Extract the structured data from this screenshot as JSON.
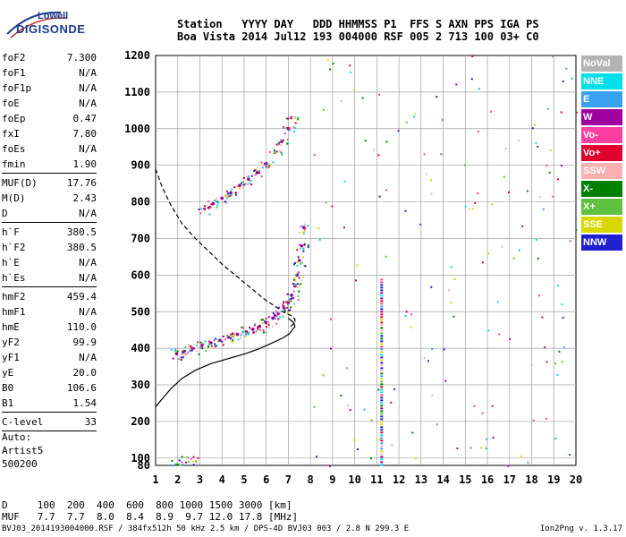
{
  "logo": {
    "line1": "Lowell",
    "line2": "DIGISONDE"
  },
  "header": {
    "labels": [
      "Station",
      "YYYY",
      "DAY",
      "DDD",
      "HHMMSS",
      "P1",
      "FFS",
      "S",
      "AXN",
      "PPS",
      "IGA",
      "PS"
    ],
    "values": [
      "Boa Vista",
      "2014",
      "Jul12",
      "193",
      "004000",
      "RSF",
      "005",
      "2",
      "713",
      "100",
      "03+",
      "C0"
    ]
  },
  "params": {
    "group1": [
      {
        "k": "foF2",
        "v": "7.300"
      },
      {
        "k": "foF1",
        "v": "N/A"
      },
      {
        "k": "foF1p",
        "v": "N/A"
      },
      {
        "k": "foE",
        "v": "N/A"
      },
      {
        "k": "foEp",
        "v": "0.47"
      },
      {
        "k": "fxI",
        "v": "7.80"
      },
      {
        "k": "foEs",
        "v": "N/A"
      },
      {
        "k": "fmin",
        "v": "1.90"
      }
    ],
    "group2": [
      {
        "k": "MUF(D)",
        "v": "17.76"
      },
      {
        "k": "M(D)",
        "v": "2.43"
      },
      {
        "k": "D",
        "v": "N/A"
      }
    ],
    "group3": [
      {
        "k": "h`F",
        "v": "380.5"
      },
      {
        "k": "h`F2",
        "v": "380.5"
      },
      {
        "k": "h`E",
        "v": "N/A"
      },
      {
        "k": "h`Es",
        "v": "N/A"
      }
    ],
    "group4": [
      {
        "k": "hmF2",
        "v": "459.4"
      },
      {
        "k": "hmF1",
        "v": "N/A"
      },
      {
        "k": "hmE",
        "v": "110.0"
      },
      {
        "k": "yF2",
        "v": "99.9"
      },
      {
        "k": "yF1",
        "v": "N/A"
      },
      {
        "k": "yE",
        "v": "20.0"
      },
      {
        "k": "B0",
        "v": "106.6"
      },
      {
        "k": "B1",
        "v": "1.54"
      }
    ],
    "group5": [
      {
        "k": "C-level",
        "v": "33"
      }
    ]
  },
  "auto": {
    "line1": "Auto:",
    "line2": "Artist5",
    "line3": "500200"
  },
  "legend": [
    {
      "label": "NoVal",
      "color": "#b4b4b4"
    },
    {
      "label": "NNE",
      "color": "#00e0e8"
    },
    {
      "label": "E",
      "color": "#3aa0f0"
    },
    {
      "label": "W",
      "color": "#a000a0"
    },
    {
      "label": "Vo-",
      "color": "#ff40a0"
    },
    {
      "label": "Vo+",
      "color": "#e00030"
    },
    {
      "label": "SSW",
      "color": "#f8b0b0"
    },
    {
      "label": "X-",
      "color": "#008000"
    },
    {
      "label": "X+",
      "color": "#60c040"
    },
    {
      "label": "SSE",
      "color": "#d8d800"
    },
    {
      "label": "NNW",
      "color": "#2020d0"
    }
  ],
  "muf": {
    "line1": "D     100  200  400  600  800 1000 1500 3000 [km]",
    "line2": "MUF   7.7  7.7  8.0  8.4  8.9  9.7 12.0 17.8 [MHz]"
  },
  "footer": "BVJ03_2014193004000.RSF / 384fx512h 50 kHz 2.5 km / DPS-4D BVJ03 003 / 2.8 N 299.3 E",
  "version": "Ion2Png v. 1.3.17",
  "chart_data": {
    "type": "scatter",
    "xlim": [
      1,
      20
    ],
    "ylim": [
      80,
      1200
    ],
    "xticks": [
      1,
      2,
      3,
      4,
      5,
      6,
      7,
      8,
      9,
      10,
      11,
      12,
      13,
      14,
      15,
      16,
      17,
      18,
      19,
      20
    ],
    "yticks": [
      80,
      100,
      200,
      300,
      400,
      500,
      600,
      700,
      800,
      900,
      1000,
      1100,
      1200
    ],
    "grid": true,
    "series": [
      {
        "name": "profile",
        "style": "solid",
        "x": [
          1.0,
          1.3,
          1.7,
          2.2,
          2.8,
          3.5,
          4.3,
          5.0,
          5.6,
          6.1,
          6.5,
          6.8,
          7.05,
          7.2,
          7.3,
          7.25,
          7.0
        ],
        "y": [
          240,
          262,
          290,
          318,
          340,
          358,
          372,
          384,
          397,
          410,
          421,
          430,
          440,
          452,
          459,
          470,
          482
        ]
      },
      {
        "name": "trace",
        "style": "dashed",
        "x": [
          1.0,
          1.3,
          1.7,
          2.2,
          2.8,
          3.4,
          4.0,
          4.6,
          5.1,
          5.6,
          6.0,
          6.4,
          6.8,
          7.1,
          7.3,
          7.3,
          7.1
        ],
        "y": [
          890,
          840,
          790,
          740,
          700,
          665,
          630,
          600,
          575,
          550,
          530,
          515,
          498,
          490,
          480,
          470,
          460
        ]
      },
      {
        "name": "F2-O-trace",
        "x": [
          1.95,
          2.3,
          2.7,
          3.1,
          3.5,
          3.9,
          4.3,
          4.7,
          5.1,
          5.4,
          5.7,
          6.0,
          6.3,
          6.55,
          6.8,
          7.0,
          7.15,
          7.3,
          7.4,
          7.5,
          7.6,
          7.7
        ],
        "y": [
          385,
          392,
          400,
          408,
          415,
          422,
          430,
          438,
          445,
          452,
          460,
          470,
          482,
          495,
          510,
          525,
          545,
          570,
          600,
          640,
          680,
          730
        ]
      },
      {
        "name": "F2-2hop-trace",
        "x": [
          3.2,
          3.6,
          4.0,
          4.4,
          4.8,
          5.2,
          5.6,
          6.0,
          6.4,
          6.7,
          7.0,
          7.15
        ],
        "y": [
          780,
          795,
          810,
          825,
          845,
          862,
          880,
          905,
          935,
          965,
          1000,
          1030
        ]
      }
    ]
  }
}
